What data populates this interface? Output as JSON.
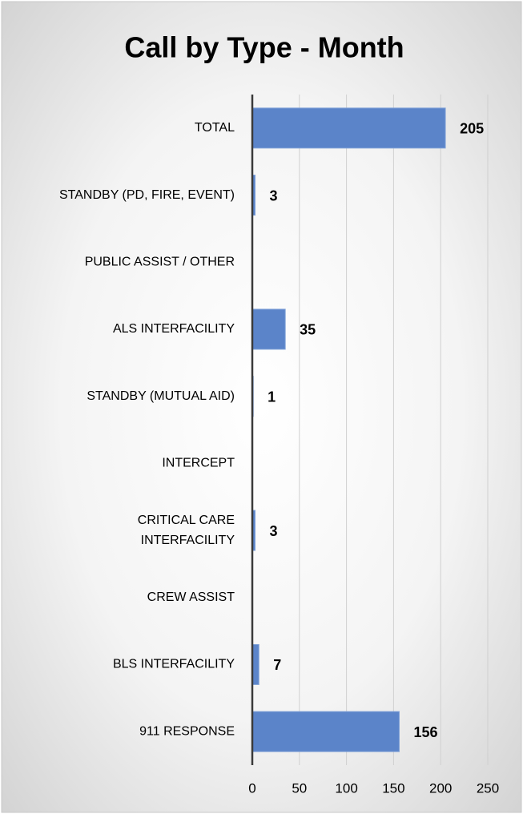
{
  "chart_data": {
    "type": "bar",
    "orientation": "horizontal",
    "title": "Call by Type - Month",
    "categories": [
      "TOTAL",
      "STANDBY (PD, FIRE, EVENT)",
      "PUBLIC ASSIST / OTHER",
      "ALS INTERFACILITY",
      "STANDBY (MUTUAL AID)",
      "INTERCEPT",
      "CRITICAL CARE INTERFACILITY",
      "CREW ASSIST",
      "BLS INTERFACILITY",
      "911 RESPONSE"
    ],
    "values": [
      205,
      3,
      null,
      35,
      1,
      null,
      3,
      null,
      7,
      156
    ],
    "color": "#5b84c9",
    "xlim": [
      0,
      250
    ],
    "xticks": [
      0,
      50,
      100,
      150,
      200,
      250
    ],
    "grid": true
  }
}
